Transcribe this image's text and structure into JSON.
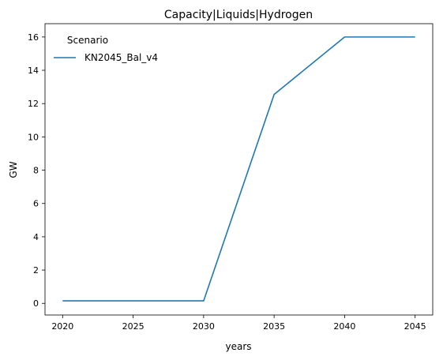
{
  "chart_data": {
    "type": "line",
    "title": "Capacity|Liquids|Hydrogen",
    "xlabel": "years",
    "ylabel": "GW",
    "x": [
      2020,
      2025,
      2030,
      2035,
      2040,
      2045
    ],
    "xticks": [
      2020,
      2025,
      2030,
      2035,
      2040,
      2045
    ],
    "yticks": [
      0,
      2,
      4,
      6,
      8,
      10,
      12,
      14,
      16
    ],
    "xlim": [
      2018.75,
      2046.25
    ],
    "ylim": [
      -0.7,
      16.8
    ],
    "grid": false,
    "legend": {
      "title": "Scenario",
      "placement": "top-left"
    },
    "series": [
      {
        "name": "KN2045_Bal_v4",
        "color": "#1f77b4",
        "values": [
          0.15,
          0.15,
          0.15,
          12.55,
          16.0,
          16.0
        ]
      }
    ]
  }
}
